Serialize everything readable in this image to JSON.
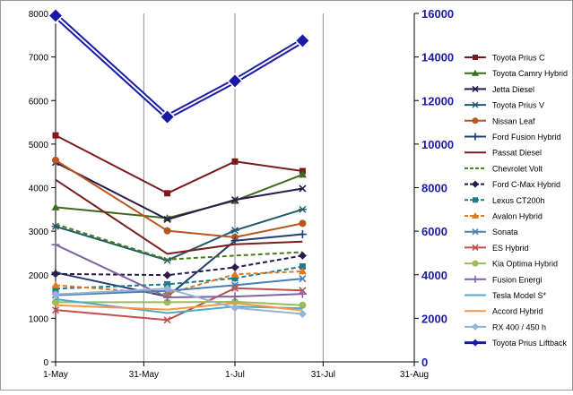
{
  "chart_data": {
    "type": "line",
    "x_axis": {
      "min": "2011-05-01",
      "max": "2011-08-31",
      "tick_labels": [
        "1-May",
        "31-May",
        "1-Jul",
        "31-Jul",
        "31-Aug"
      ],
      "ticks": [
        "2011-05-01",
        "2011-05-31",
        "2011-07-01",
        "2011-07-31",
        "2011-08-31"
      ]
    },
    "y_left": {
      "min": 0,
      "max": 8000,
      "step": 1000
    },
    "y_right": {
      "min": 0,
      "max": 16000,
      "step": 2000,
      "color": "#1a1aa8"
    },
    "legend_position": "right",
    "grid": "vertical",
    "dates": [
      "2011-05-01",
      "2011-06-08",
      "2011-07-01",
      "2011-07-24"
    ],
    "series": [
      {
        "name": "Toyota Prius C",
        "color": "#7b1b1b",
        "marker": "square",
        "dash": false,
        "axis": "left",
        "values": [
          5200,
          3870,
          4600,
          4380
        ]
      },
      {
        "name": "Toyota Camry Hybrid",
        "color": "#3f6b1e",
        "marker": "triangle",
        "dash": false,
        "axis": "left",
        "values": [
          3550,
          3300,
          3700,
          4300
        ]
      },
      {
        "name": "Jetta Diesel",
        "color": "#2b1a4a",
        "marker": "x",
        "dash": false,
        "axis": "left",
        "values": [
          4580,
          3270,
          3720,
          3980
        ]
      },
      {
        "name": "Toyota Prius V",
        "color": "#1f5a6a",
        "marker": "star",
        "dash": false,
        "axis": "left",
        "values": [
          3110,
          2330,
          3020,
          3500
        ]
      },
      {
        "name": "Nissan Leaf",
        "color": "#b8561f",
        "marker": "circle",
        "dash": false,
        "axis": "left",
        "values": [
          4630,
          3010,
          2860,
          3180
        ]
      },
      {
        "name": "Ford Fusion Hybrid",
        "color": "#1f3f73",
        "marker": "plus",
        "dash": false,
        "axis": "left",
        "values": [
          2050,
          1500,
          2780,
          2930
        ]
      },
      {
        "name": "Passat Diesel",
        "color": "#7a1f1f",
        "marker": "none",
        "dash": false,
        "axis": "left",
        "values": [
          4180,
          2480,
          2700,
          2760
        ]
      },
      {
        "name": "Chevrolet Volt",
        "color": "#4a7a1f",
        "marker": "none",
        "dash": true,
        "axis": "left",
        "values": [
          3160,
          2350,
          2440,
          2520
        ]
      },
      {
        "name": "Ford C-Max Hybrid",
        "color": "#2b1a4a",
        "marker": "diamond",
        "dash": true,
        "axis": "left",
        "values": [
          2020,
          1990,
          2170,
          2440
        ]
      },
      {
        "name": "Lexus CT200h",
        "color": "#1f7a8c",
        "marker": "square",
        "dash": true,
        "axis": "left",
        "values": [
          1680,
          1780,
          1920,
          2190
        ]
      },
      {
        "name": "Avalon Hybrid",
        "color": "#e07a1f",
        "marker": "triangle",
        "dash": true,
        "axis": "left",
        "values": [
          1760,
          1560,
          2010,
          2080
        ]
      },
      {
        "name": "Sonata",
        "color": "#4a7fb5",
        "marker": "x",
        "dash": false,
        "axis": "left",
        "values": [
          1530,
          1630,
          1760,
          1910
        ]
      },
      {
        "name": "ES Hybrid",
        "color": "#c0504d",
        "marker": "x",
        "dash": false,
        "axis": "left",
        "values": [
          1190,
          960,
          1690,
          1640
        ]
      },
      {
        "name": "Kia Optima Hybrid",
        "color": "#9bbb59",
        "marker": "circle",
        "dash": false,
        "axis": "left",
        "values": [
          1370,
          1370,
          1380,
          1300
        ]
      },
      {
        "name": "Fusion Energi",
        "color": "#8064a2",
        "marker": "plus",
        "dash": false,
        "axis": "left",
        "values": [
          2690,
          1480,
          1500,
          1560
        ]
      },
      {
        "name": "Tesla Model S*",
        "color": "#4bacc6",
        "marker": "none",
        "dash": false,
        "axis": "left",
        "values": [
          1440,
          1120,
          1270,
          1230
        ]
      },
      {
        "name": "Accord Hybrid",
        "color": "#f79646",
        "marker": "none",
        "dash": false,
        "axis": "left",
        "values": [
          1300,
          1200,
          1350,
          1180
        ]
      },
      {
        "name": "RX 400 / 450 h",
        "color": "#95b3d7",
        "marker": "diamond",
        "dash": false,
        "axis": "left",
        "values": [
          1550,
          1680,
          1240,
          1100
        ]
      },
      {
        "name": "Toyota Prius Liftback",
        "color": "#1a1aa8",
        "marker": "diamond",
        "dash": false,
        "axis": "right",
        "values": [
          15900,
          11250,
          12900,
          14750
        ]
      }
    ]
  }
}
